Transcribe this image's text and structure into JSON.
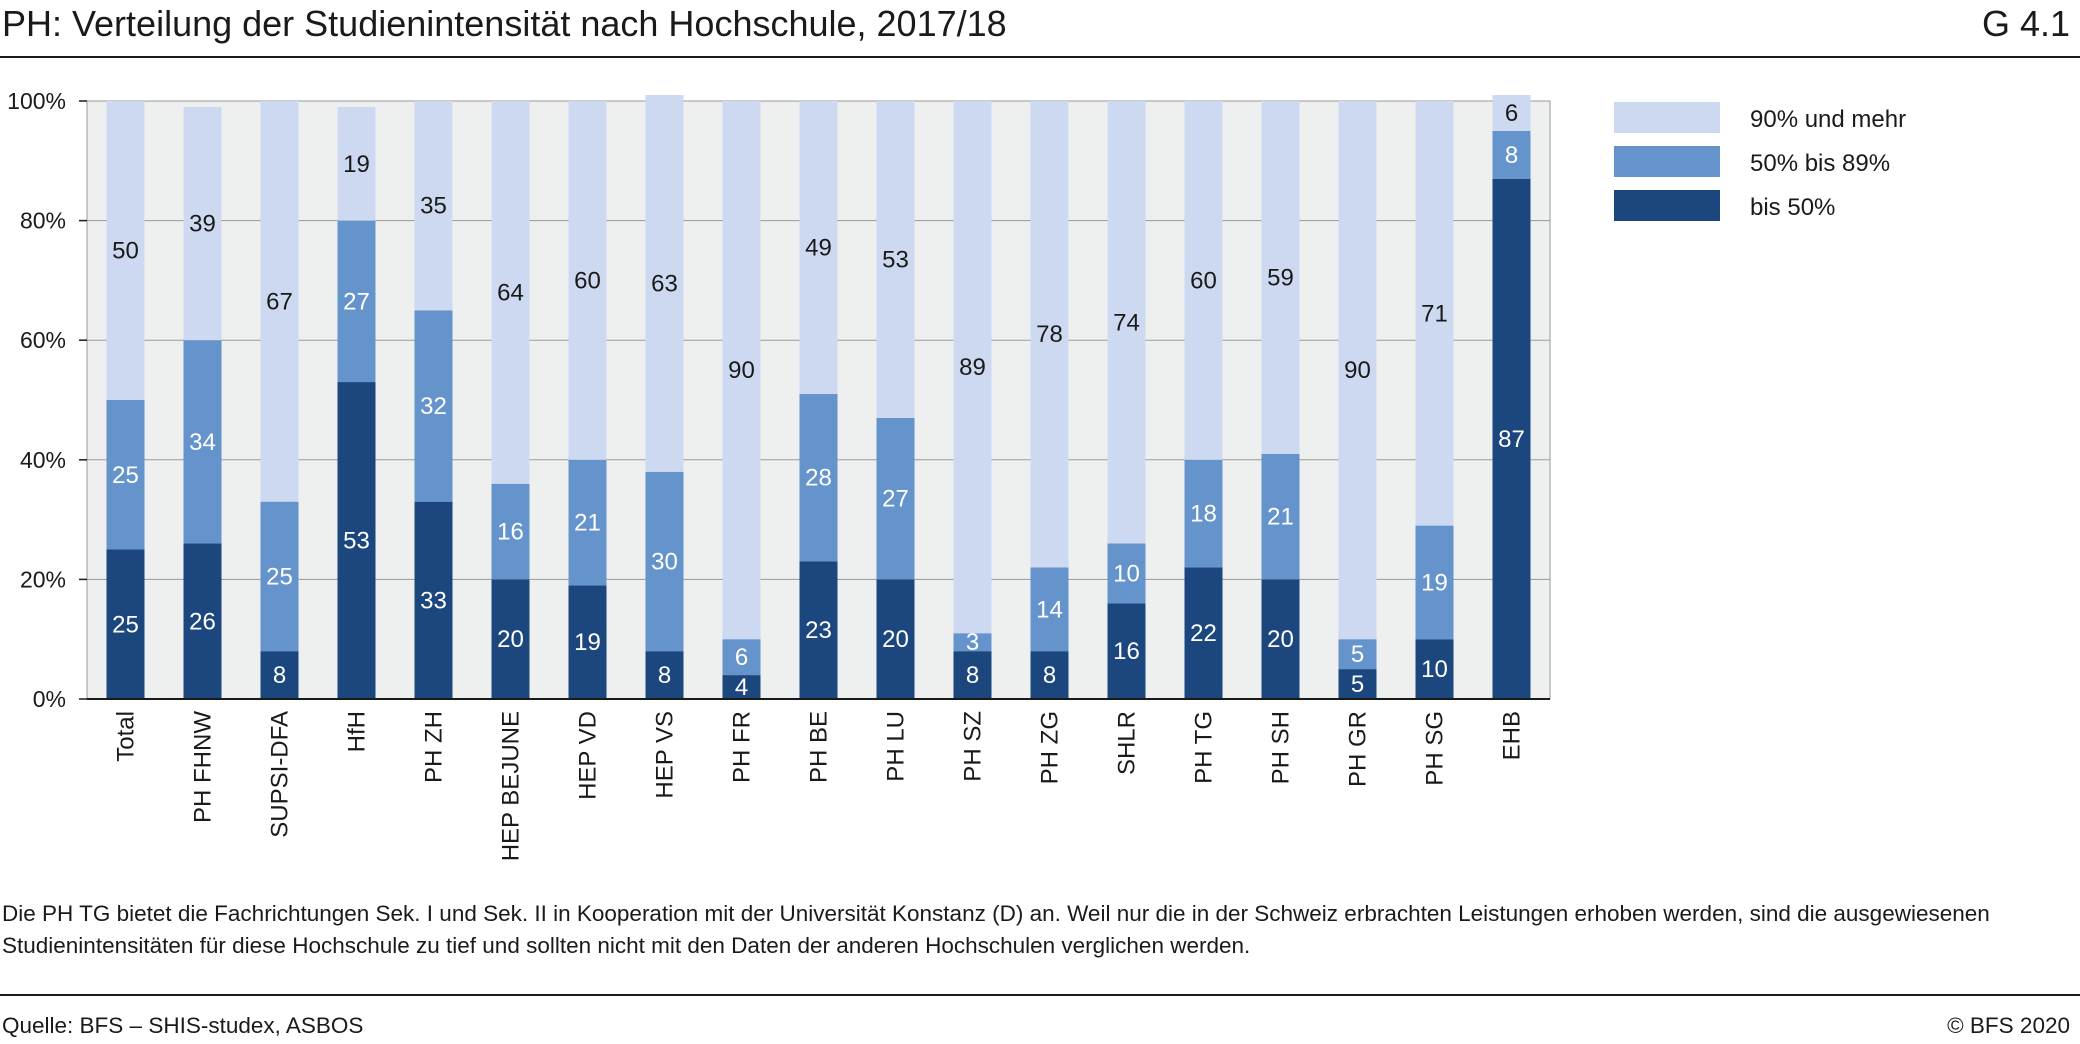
{
  "header": {
    "title": "PH: Verteilung der Studienintensität nach Hochschule, 2017/18",
    "code": "G 4.1"
  },
  "footer": {
    "note": "Die PH TG bietet die Fachrichtungen Sek. I und Sek. II in Kooperation mit der Universität Konstanz (D) an. Weil nur die in der Schweiz erbrachten Leistungen erhoben werden, sind die ausgewiesenen Studienintensitäten für diese Hochschule zu tief und sollten nicht mit den Daten der anderen Hochschulen verglichen werden.",
    "source": "Quelle: BFS – SHIS-studex, ASBOS",
    "copyright": "© BFS 2020"
  },
  "chart_data": {
    "type": "bar",
    "stacked": true,
    "categories": [
      "Total",
      "PH FHNW",
      "SUPSI-DFA",
      "HfH",
      "PH ZH",
      "HEP BEJUNE",
      "HEP VD",
      "HEP VS",
      "PH FR",
      "PH BE",
      "PH LU",
      "PH SZ",
      "PH ZG",
      "SHLR",
      "PH TG",
      "PH SH",
      "PH GR",
      "PH SG",
      "EHB"
    ],
    "series": [
      {
        "name": "bis 50%",
        "color": "#1c477e",
        "values": [
          25,
          26,
          8,
          53,
          33,
          20,
          19,
          8,
          4,
          23,
          20,
          8,
          8,
          16,
          22,
          20,
          5,
          10,
          87
        ]
      },
      {
        "name": "50% bis 89%",
        "color": "#6593cc",
        "values": [
          25,
          34,
          25,
          27,
          32,
          16,
          21,
          30,
          6,
          28,
          27,
          3,
          14,
          10,
          18,
          21,
          5,
          19,
          8
        ]
      },
      {
        "name": "90% und mehr",
        "color": "#cdd9f0",
        "values": [
          50,
          39,
          67,
          19,
          35,
          64,
          60,
          63,
          90,
          49,
          53,
          89,
          78,
          74,
          60,
          59,
          90,
          71,
          6
        ]
      }
    ],
    "legend_order": [
      "90% und mehr",
      "50% bis 89%",
      "bis 50%"
    ],
    "y_ticks": [
      "0%",
      "20%",
      "40%",
      "60%",
      "80%",
      "100%"
    ],
    "ylim": [
      0,
      100
    ],
    "grid": true,
    "legend_position": "top-right",
    "plot_background": "#eef0f0",
    "grid_color": "#999999"
  }
}
